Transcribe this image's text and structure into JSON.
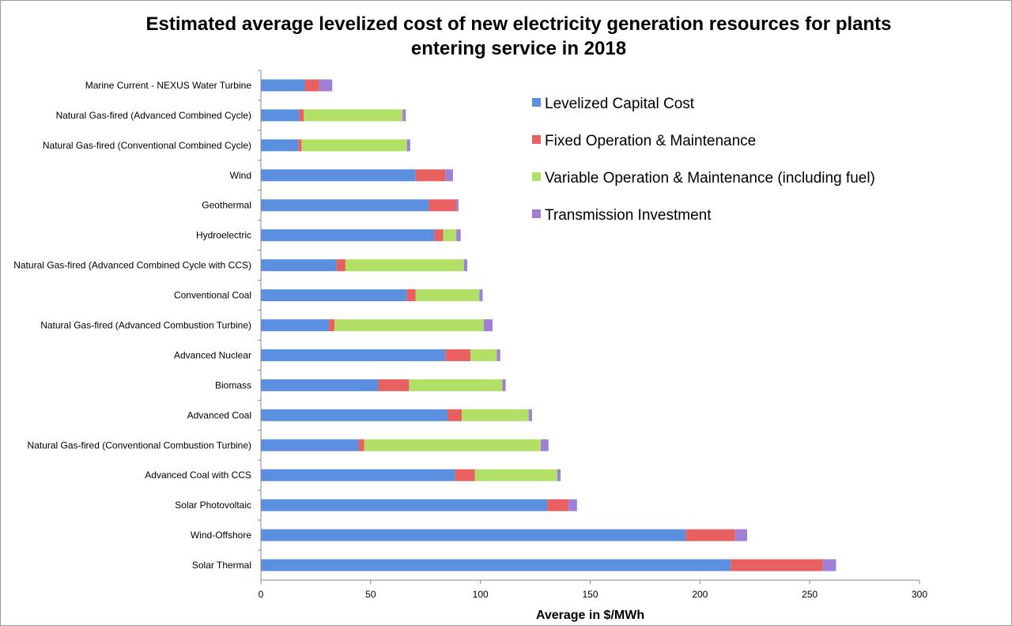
{
  "chart_data": {
    "type": "bar",
    "orientation": "horizontal",
    "stacked": true,
    "title": "Estimated average levelized cost of new electricity generation resources for plants entering service in 2018",
    "xlabel": "Average in $/MWh",
    "ylabel": "",
    "xlim": [
      0,
      300
    ],
    "x_ticks": [
      0,
      50,
      100,
      150,
      200,
      250,
      300
    ],
    "grid": false,
    "legend_position": "top-right",
    "categories": [
      "Marine Current - NEXUS Water Turbine",
      "Natural Gas-fired (Advanced Combined Cycle)",
      "Natural Gas-fired (Conventional Combined Cycle)",
      "Wind",
      "Geothermal",
      "Hydroelectric",
      "Natural Gas-fired (Advanced Combined Cycle with CCS)",
      "Conventional Coal",
      "Natural Gas-fired (Advanced Combustion Turbine)",
      "Advanced Nuclear",
      "Biomass",
      "Advanced Coal",
      "Natural Gas-fired (Conventional Combustion Turbine)",
      "Advanced Coal with CCS",
      "Solar Photovoltaic",
      "Wind-Offshore",
      "Solar Thermal"
    ],
    "series": [
      {
        "name": "Levelized Capital Cost",
        "color": "#5b8fe0",
        "values": [
          20,
          17.5,
          17,
          70.5,
          76.5,
          79,
          34.5,
          66.5,
          31,
          84,
          53.5,
          85,
          44.5,
          88.5,
          130.5,
          193.5,
          214
        ]
      },
      {
        "name": "Fixed Operation & Maintenance",
        "color": "#e86060",
        "values": [
          6.5,
          2,
          1.5,
          13.5,
          12.5,
          4,
          4,
          4,
          2.5,
          11.5,
          14,
          6.5,
          2.5,
          9,
          9.5,
          22.5,
          42
        ]
      },
      {
        "name": "Variable Operation & Maintenance (including fuel)",
        "color": "#b2e066",
        "values": [
          0,
          45,
          48,
          0,
          0,
          6,
          54,
          29,
          68,
          12,
          42.5,
          30.5,
          80.5,
          37.5,
          0,
          0,
          0
        ]
      },
      {
        "name": "Transmission Investment",
        "color": "#a07fd6",
        "values": [
          6,
          1.5,
          1.5,
          3.5,
          1,
          2,
          1.5,
          1.5,
          4,
          1.5,
          1.5,
          1.5,
          3.5,
          1.5,
          4,
          5.5,
          6
        ]
      }
    ]
  }
}
